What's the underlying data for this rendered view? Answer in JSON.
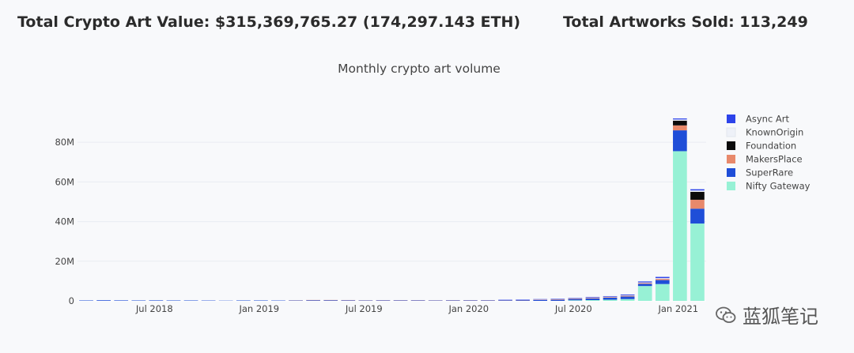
{
  "header": {
    "total_value": "Total Crypto Art Value: $315,369,765.27 (174,297.143 ETH)",
    "total_sold": "Total Artworks Sold: 113,249"
  },
  "watermark": {
    "text": "蓝狐笔记",
    "icon": "wechat-icon"
  },
  "chart_data": {
    "type": "bar",
    "stacked": true,
    "title": "Monthly crypto art volume",
    "xlabel": "",
    "ylabel": "",
    "ylim": [
      0,
      92000000
    ],
    "yticks": [
      {
        "value": 0,
        "label": "0"
      },
      {
        "value": 20000000,
        "label": "20M"
      },
      {
        "value": 40000000,
        "label": "40M"
      },
      {
        "value": 60000000,
        "label": "60M"
      },
      {
        "value": 80000000,
        "label": "80M"
      }
    ],
    "grid": true,
    "legend": "top-right",
    "categories": [
      "2018-04",
      "2018-05",
      "2018-06",
      "2018-07",
      "2018-08",
      "2018-09",
      "2018-10",
      "2018-11",
      "2018-12",
      "2019-01",
      "2019-02",
      "2019-03",
      "2019-04",
      "2019-05",
      "2019-06",
      "2019-07",
      "2019-08",
      "2019-09",
      "2019-10",
      "2019-11",
      "2019-12",
      "2020-01",
      "2020-02",
      "2020-03",
      "2020-04",
      "2020-05",
      "2020-06",
      "2020-07",
      "2020-08",
      "2020-09",
      "2020-10",
      "2020-11",
      "2020-12",
      "2021-01",
      "2021-02",
      "2021-03"
    ],
    "xticks": [
      {
        "label": "Jul 2018",
        "index": 3
      },
      {
        "label": "Jan 2019",
        "index": 9
      },
      {
        "label": "Jul 2019",
        "index": 15
      },
      {
        "label": "Jan 2020",
        "index": 21
      },
      {
        "label": "Jul 2020",
        "index": 27
      },
      {
        "label": "Jan 2021",
        "index": 33
      }
    ],
    "series": [
      {
        "name": "Nifty Gateway",
        "color": "#97f1d5",
        "values": [
          0,
          0,
          0,
          0,
          0,
          0,
          0,
          0,
          0,
          0,
          0,
          0,
          0,
          0,
          0,
          0,
          0,
          0,
          0,
          0,
          0,
          0,
          0,
          0,
          0,
          0,
          0,
          0,
          300000,
          400000,
          600000,
          900000,
          7500000,
          8500000,
          75500000,
          39000000
        ]
      },
      {
        "name": "SuperRare",
        "color": "#1f4ed8",
        "values": [
          300000,
          400000,
          350000,
          300000,
          350000,
          300000,
          300000,
          250000,
          200000,
          300000,
          300000,
          250000,
          300000,
          300000,
          300000,
          250000,
          250000,
          300000,
          300000,
          300000,
          250000,
          300000,
          300000,
          300000,
          300000,
          350000,
          450000,
          550000,
          650000,
          800000,
          1000000,
          1300000,
          1100000,
          2000000,
          10500000,
          7500000
        ]
      },
      {
        "name": "MakersPlace",
        "color": "#e8896b",
        "values": [
          0,
          0,
          0,
          0,
          0,
          0,
          0,
          0,
          0,
          0,
          0,
          0,
          50000,
          250000,
          250000,
          200000,
          100000,
          100000,
          100000,
          100000,
          100000,
          100000,
          100000,
          100000,
          100000,
          150000,
          200000,
          250000,
          250000,
          300000,
          300000,
          350000,
          400000,
          600000,
          2500000,
          4500000
        ]
      },
      {
        "name": "Foundation",
        "color": "#0b0b0b",
        "values": [
          0,
          0,
          0,
          0,
          0,
          0,
          0,
          0,
          0,
          0,
          0,
          0,
          0,
          0,
          0,
          0,
          0,
          0,
          0,
          0,
          0,
          0,
          0,
          0,
          0,
          0,
          0,
          0,
          0,
          0,
          0,
          0,
          0,
          0,
          2400000,
          4000000
        ]
      },
      {
        "name": "KnownOrigin",
        "color": "#eef1f8",
        "values": [
          100000,
          100000,
          100000,
          100000,
          100000,
          100000,
          100000,
          100000,
          100000,
          100000,
          100000,
          100000,
          100000,
          100000,
          100000,
          100000,
          100000,
          100000,
          100000,
          100000,
          100000,
          100000,
          100000,
          100000,
          100000,
          100000,
          100000,
          150000,
          150000,
          200000,
          200000,
          250000,
          300000,
          400000,
          600000,
          700000
        ]
      },
      {
        "name": "Async Art",
        "color": "#2d43ea",
        "values": [
          0,
          0,
          0,
          0,
          0,
          0,
          0,
          0,
          0,
          0,
          0,
          0,
          0,
          0,
          0,
          0,
          0,
          0,
          0,
          0,
          0,
          0,
          0,
          0,
          50000,
          100000,
          150000,
          200000,
          200000,
          300000,
          300000,
          400000,
          500000,
          600000,
          500000,
          600000
        ]
      }
    ]
  }
}
